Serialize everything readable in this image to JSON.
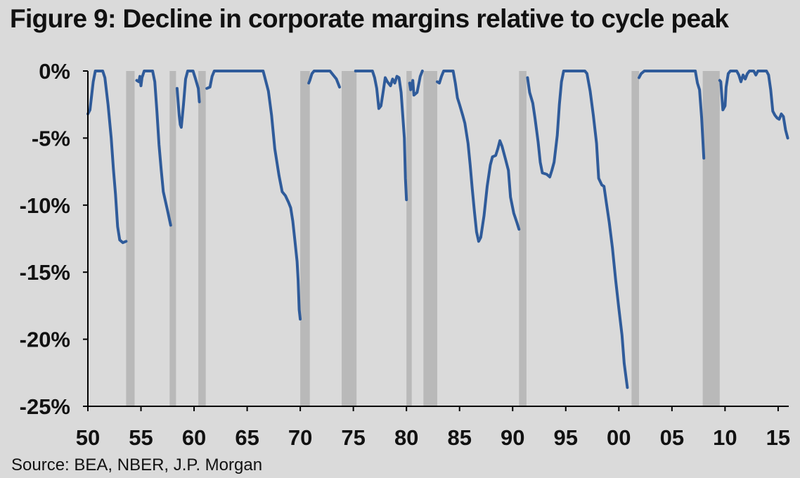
{
  "title": "Figure 9: Decline in corporate margins relative to cycle peak",
  "source": "Source: BEA, NBER, J.P. Morgan",
  "colors": {
    "line": "#2f5b9a",
    "recession": "#b9b9b9",
    "background": "#dadada",
    "axis": "#000000"
  },
  "chart_data": {
    "type": "line",
    "title": "Figure 9: Decline in corporate margins relative to cycle peak",
    "xlabel": "",
    "ylabel": "",
    "xlim": [
      1950,
      2016
    ],
    "ylim": [
      -25,
      0
    ],
    "y_ticks": [
      0,
      -5,
      -10,
      -15,
      -20,
      -25
    ],
    "y_tick_labels": [
      "0%",
      "-5%",
      "-10%",
      "-15%",
      "-20%",
      "-25%"
    ],
    "x_ticks": [
      1950,
      1955,
      1960,
      1965,
      1970,
      1975,
      1980,
      1985,
      1990,
      1995,
      2000,
      2005,
      2010,
      2015
    ],
    "x_tick_labels": [
      "50",
      "55",
      "60",
      "65",
      "70",
      "75",
      "80",
      "85",
      "90",
      "95",
      "00",
      "05",
      "10",
      "15"
    ],
    "grid": false,
    "recessions": [
      [
        1953.6,
        1954.4
      ],
      [
        1957.7,
        1958.3
      ],
      [
        1960.4,
        1961.1
      ],
      [
        1970.0,
        1970.9
      ],
      [
        1973.9,
        1975.3
      ],
      [
        1980.0,
        1980.5
      ],
      [
        1981.6,
        1982.9
      ],
      [
        1990.6,
        1991.3
      ],
      [
        2001.2,
        2001.9
      ],
      [
        2007.9,
        2009.5
      ]
    ],
    "series": [
      {
        "segments": [
          [
            [
              1950.0,
              -3.2
            ],
            [
              1950.2,
              -2.9
            ],
            [
              1950.5,
              -0.8
            ],
            [
              1950.7,
              0
            ],
            [
              1951.4,
              0
            ],
            [
              1951.6,
              -0.5
            ],
            [
              1951.9,
              -2.5
            ],
            [
              1952.2,
              -5.0
            ],
            [
              1952.4,
              -7.3
            ],
            [
              1952.6,
              -9.2
            ],
            [
              1952.8,
              -11.6
            ],
            [
              1953.0,
              -12.6
            ],
            [
              1953.3,
              -12.8
            ],
            [
              1953.6,
              -12.7
            ]
          ],
          [
            [
              1954.6,
              -0.7
            ],
            [
              1954.8,
              -0.8
            ],
            [
              1954.9,
              -0.4
            ],
            [
              1955.0,
              -1.1
            ],
            [
              1955.1,
              -0.5
            ],
            [
              1955.3,
              0
            ],
            [
              1956.1,
              0
            ],
            [
              1956.3,
              -0.8
            ],
            [
              1956.5,
              -3.0
            ],
            [
              1956.7,
              -5.5
            ],
            [
              1956.9,
              -7.3
            ],
            [
              1957.1,
              -9.0
            ],
            [
              1957.3,
              -9.7
            ],
            [
              1957.5,
              -10.4
            ],
            [
              1957.8,
              -11.5
            ]
          ],
          [
            [
              1958.4,
              -1.3
            ],
            [
              1958.6,
              -3.3
            ],
            [
              1958.7,
              -4.0
            ],
            [
              1958.8,
              -4.2
            ],
            [
              1959.0,
              -2.5
            ],
            [
              1959.2,
              -0.6
            ],
            [
              1959.4,
              0
            ],
            [
              1959.9,
              0
            ],
            [
              1960.1,
              -0.5
            ],
            [
              1960.4,
              -1.3
            ],
            [
              1960.5,
              -2.3
            ]
          ],
          [
            [
              1961.2,
              -1.3
            ],
            [
              1961.5,
              -1.2
            ],
            [
              1961.7,
              -0.4
            ],
            [
              1961.9,
              0
            ],
            [
              1966.5,
              0
            ],
            [
              1966.7,
              -0.6
            ],
            [
              1967.0,
              -1.5
            ],
            [
              1967.3,
              -3.3
            ],
            [
              1967.6,
              -5.8
            ],
            [
              1968.0,
              -7.8
            ],
            [
              1968.3,
              -9.0
            ],
            [
              1968.6,
              -9.3
            ],
            [
              1968.9,
              -9.8
            ],
            [
              1969.1,
              -10.2
            ],
            [
              1969.3,
              -11.2
            ],
            [
              1969.5,
              -12.7
            ],
            [
              1969.7,
              -14.2
            ],
            [
              1969.8,
              -15.6
            ],
            [
              1969.9,
              -17.8
            ],
            [
              1970.0,
              -18.5
            ]
          ],
          [
            [
              1970.8,
              -0.9
            ],
            [
              1970.9,
              -0.7
            ],
            [
              1971.1,
              -0.2
            ],
            [
              1971.3,
              0
            ],
            [
              1972.8,
              0
            ],
            [
              1973.0,
              -0.2
            ],
            [
              1973.2,
              -0.4
            ],
            [
              1973.4,
              -0.6
            ],
            [
              1973.7,
              -1.2
            ]
          ],
          [
            [
              1975.2,
              0
            ],
            [
              1976.8,
              0
            ],
            [
              1977.0,
              -0.5
            ],
            [
              1977.2,
              -1.3
            ],
            [
              1977.4,
              -2.8
            ],
            [
              1977.6,
              -2.6
            ],
            [
              1977.8,
              -1.6
            ],
            [
              1978.0,
              -0.5
            ],
            [
              1978.2,
              -0.8
            ],
            [
              1978.5,
              -1.1
            ],
            [
              1978.7,
              -0.6
            ],
            [
              1978.9,
              -0.9
            ],
            [
              1979.1,
              -0.4
            ],
            [
              1979.3,
              -0.5
            ],
            [
              1979.5,
              -1.6
            ],
            [
              1979.8,
              -5.0
            ],
            [
              1979.9,
              -8.0
            ],
            [
              1980.0,
              -9.6
            ]
          ],
          [
            [
              1980.3,
              -0.9
            ],
            [
              1980.4,
              -1.4
            ],
            [
              1980.6,
              -0.7
            ],
            [
              1980.7,
              -1.8
            ],
            [
              1981.0,
              -1.6
            ],
            [
              1981.3,
              -0.4
            ],
            [
              1981.5,
              0
            ]
          ],
          [
            [
              1982.9,
              -0.8
            ],
            [
              1983.1,
              -0.9
            ],
            [
              1983.3,
              -0.4
            ],
            [
              1983.5,
              0
            ],
            [
              1984.4,
              0
            ],
            [
              1984.6,
              -0.9
            ],
            [
              1984.8,
              -2.0
            ],
            [
              1985.0,
              -2.5
            ],
            [
              1985.3,
              -3.3
            ],
            [
              1985.5,
              -3.9
            ],
            [
              1985.8,
              -5.4
            ],
            [
              1986.0,
              -7.0
            ],
            [
              1986.2,
              -8.8
            ],
            [
              1986.4,
              -10.5
            ],
            [
              1986.6,
              -12.0
            ],
            [
              1986.8,
              -12.7
            ],
            [
              1987.0,
              -12.4
            ],
            [
              1987.3,
              -10.8
            ],
            [
              1987.6,
              -8.6
            ],
            [
              1987.9,
              -7.0
            ],
            [
              1988.1,
              -6.4
            ],
            [
              1988.4,
              -6.3
            ],
            [
              1988.6,
              -5.8
            ],
            [
              1988.8,
              -5.2
            ],
            [
              1989.0,
              -5.6
            ],
            [
              1989.3,
              -6.5
            ],
            [
              1989.6,
              -7.4
            ],
            [
              1989.8,
              -9.4
            ],
            [
              1990.1,
              -10.6
            ],
            [
              1990.4,
              -11.3
            ],
            [
              1990.6,
              -11.8
            ]
          ],
          [
            [
              1991.4,
              -0.5
            ],
            [
              1991.6,
              -1.6
            ],
            [
              1991.9,
              -2.4
            ],
            [
              1992.1,
              -3.5
            ],
            [
              1992.4,
              -5.3
            ],
            [
              1992.6,
              -6.8
            ],
            [
              1992.8,
              -7.6
            ],
            [
              1993.2,
              -7.7
            ],
            [
              1993.5,
              -7.9
            ],
            [
              1993.7,
              -7.4
            ],
            [
              1993.9,
              -6.8
            ],
            [
              1994.2,
              -4.8
            ],
            [
              1994.4,
              -2.5
            ],
            [
              1994.6,
              -0.8
            ],
            [
              1994.8,
              0
            ],
            [
              1996.8,
              0
            ],
            [
              1997.0,
              -0.2
            ],
            [
              1997.3,
              -1.5
            ],
            [
              1997.6,
              -3.3
            ],
            [
              1997.9,
              -5.4
            ],
            [
              1998.1,
              -8.0
            ],
            [
              1998.4,
              -8.5
            ],
            [
              1998.6,
              -8.6
            ],
            [
              1998.8,
              -9.7
            ],
            [
              1999.1,
              -11.3
            ],
            [
              1999.4,
              -13.2
            ],
            [
              1999.7,
              -15.6
            ],
            [
              2000.0,
              -17.7
            ],
            [
              2000.3,
              -19.7
            ],
            [
              2000.5,
              -21.8
            ],
            [
              2000.8,
              -23.6
            ]
          ],
          [
            [
              2001.9,
              -0.5
            ],
            [
              2002.1,
              -0.2
            ],
            [
              2002.4,
              0
            ],
            [
              2007.2,
              0
            ],
            [
              2007.4,
              -0.9
            ],
            [
              2007.6,
              -1.4
            ],
            [
              2007.8,
              -3.5
            ],
            [
              2008.0,
              -6.5
            ]
          ],
          [
            [
              2009.5,
              -0.7
            ],
            [
              2009.6,
              -0.8
            ],
            [
              2009.8,
              -2.9
            ],
            [
              2010.0,
              -2.6
            ],
            [
              2010.1,
              -1.2
            ],
            [
              2010.3,
              -0.2
            ],
            [
              2010.5,
              0
            ],
            [
              2011.1,
              0
            ],
            [
              2011.3,
              -0.3
            ],
            [
              2011.5,
              -0.8
            ],
            [
              2011.7,
              -0.3
            ],
            [
              2011.9,
              -0.6
            ],
            [
              2012.1,
              -0.2
            ],
            [
              2012.3,
              0
            ],
            [
              2012.7,
              0
            ],
            [
              2012.9,
              -0.3
            ],
            [
              2013.1,
              0
            ],
            [
              2013.9,
              0
            ],
            [
              2014.1,
              -0.3
            ],
            [
              2014.3,
              -1.4
            ],
            [
              2014.5,
              -3.0
            ],
            [
              2014.7,
              -3.3
            ],
            [
              2014.9,
              -3.5
            ],
            [
              2015.1,
              -3.6
            ],
            [
              2015.3,
              -3.2
            ],
            [
              2015.5,
              -3.4
            ],
            [
              2015.7,
              -4.4
            ],
            [
              2015.9,
              -5.0
            ]
          ]
        ]
      }
    ]
  }
}
